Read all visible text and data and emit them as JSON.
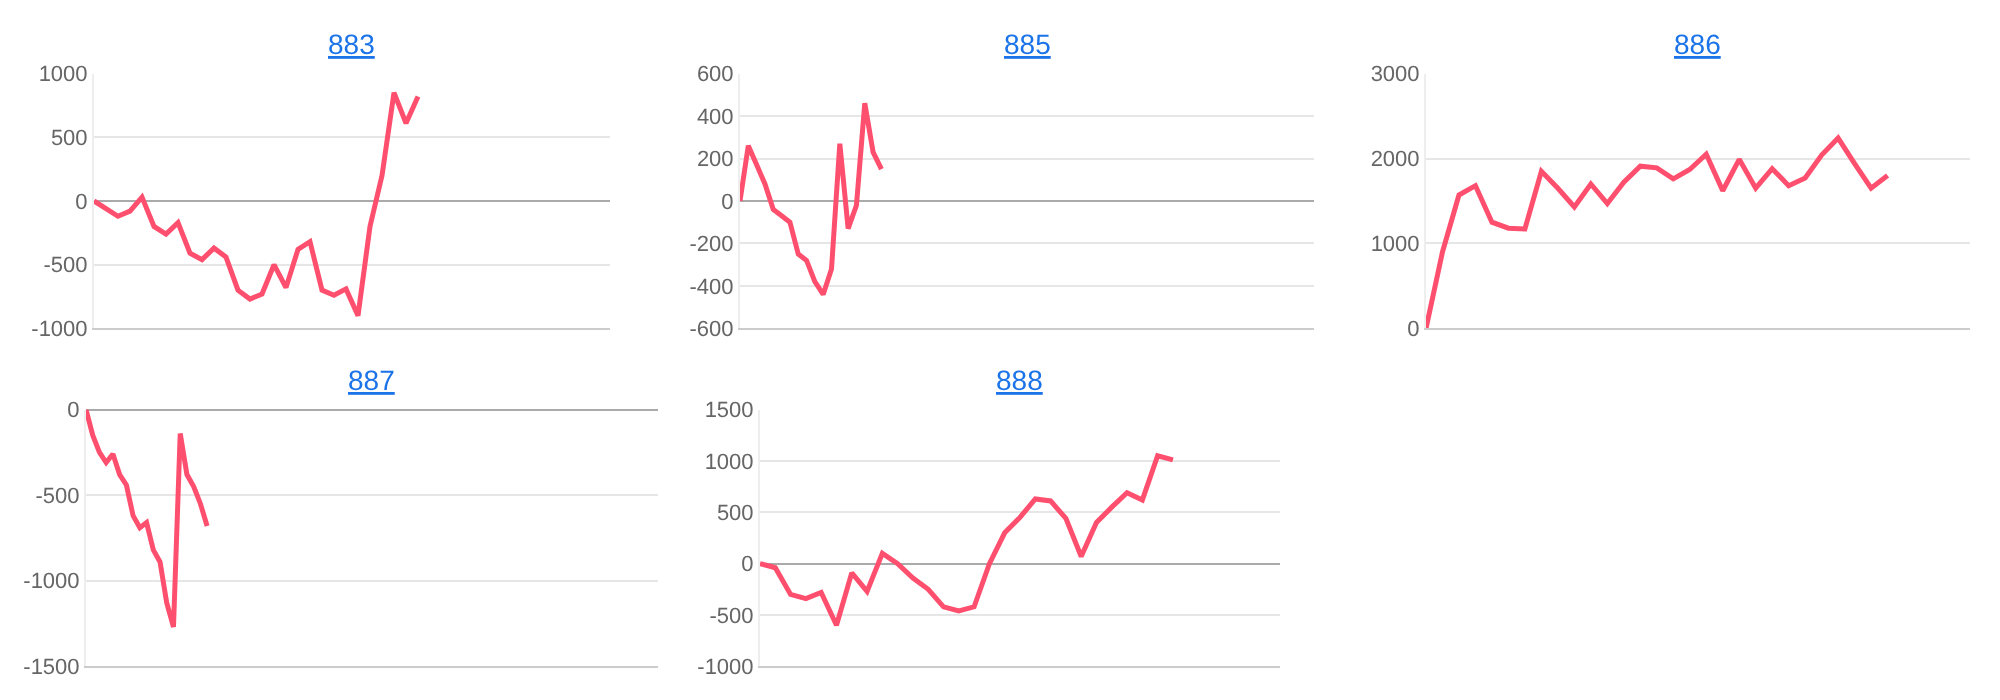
{
  "chart_data": [
    {
      "type": "line",
      "title": "883",
      "color": "#ff4f6e",
      "grid": "y",
      "tick_labels": "y",
      "ylim": [
        -1000,
        1000
      ],
      "yticks": [
        -1000,
        -500,
        0,
        500,
        1000
      ],
      "categories": [
        null,
        null,
        null,
        null,
        null,
        null,
        null,
        null,
        null,
        null,
        null,
        null,
        null,
        null,
        null,
        null,
        null,
        null,
        null,
        null,
        null,
        null,
        null,
        null,
        null,
        null,
        null,
        null,
        null,
        null,
        null,
        null,
        null,
        null,
        null,
        null,
        null,
        null,
        null,
        null,
        null,
        null,
        null,
        null
      ],
      "values": [
        0,
        -60,
        -120,
        -80,
        30,
        -200,
        -260,
        -170,
        -410,
        -460,
        -370,
        -440,
        -700,
        -770,
        -730,
        -500,
        -680,
        -380,
        -320,
        -700,
        -740,
        -690,
        -900,
        -200,
        200,
        850,
        610,
        820,
        null,
        null,
        null,
        null,
        null,
        null,
        null,
        null,
        null,
        null,
        null,
        null,
        null,
        null,
        null,
        null
      ]
    },
    {
      "type": "line",
      "title": "885",
      "color": "#ff4f6e",
      "grid": "y",
      "tick_labels": "y",
      "ylim": [
        -600,
        600
      ],
      "yticks": [
        -600,
        -400,
        -200,
        0,
        200,
        400,
        600
      ],
      "categories": [
        null,
        null,
        null,
        null,
        null,
        null,
        null,
        null,
        null,
        null,
        null,
        null,
        null,
        null,
        null,
        null,
        null,
        null,
        null,
        null,
        null,
        null,
        null,
        null,
        null,
        null,
        null,
        null,
        null,
        null,
        null,
        null,
        null,
        null,
        null,
        null,
        null,
        null,
        null,
        null,
        null,
        null,
        null,
        null,
        null,
        null,
        null,
        null,
        null,
        null,
        null,
        null,
        null,
        null,
        null,
        null,
        null,
        null,
        null,
        null,
        null,
        null,
        null,
        null,
        null,
        null,
        null,
        null,
        null,
        null
      ],
      "values": [
        0,
        260,
        170,
        80,
        -40,
        -70,
        -100,
        -250,
        -280,
        -380,
        -440,
        -320,
        270,
        -130,
        -20,
        460,
        230,
        150,
        null,
        null,
        null,
        null,
        null,
        null,
        null,
        null,
        null,
        null,
        null,
        null,
        null,
        null,
        null,
        null,
        null,
        null,
        null,
        null,
        null,
        null,
        null,
        null,
        null,
        null,
        null,
        null,
        null,
        null,
        null,
        null,
        null,
        null,
        null,
        null,
        null,
        null,
        null,
        null,
        null,
        null,
        null,
        null,
        null,
        null,
        null,
        null,
        null,
        null,
        null,
        null
      ]
    },
    {
      "type": "line",
      "title": "886",
      "color": "#ff4f6e",
      "grid": "y",
      "tick_labels": "y",
      "ylim": [
        0,
        3000
      ],
      "yticks": [
        0,
        1000,
        2000,
        3000
      ],
      "categories": [
        null,
        null,
        null,
        null,
        null,
        null,
        null,
        null,
        null,
        null,
        null,
        null,
        null,
        null,
        null,
        null,
        null,
        null,
        null,
        null,
        null,
        null,
        null,
        null,
        null,
        null,
        null,
        null,
        null,
        null,
        null,
        null,
        null,
        null
      ],
      "values": [
        0,
        900,
        1570,
        1680,
        1250,
        1180,
        1170,
        1850,
        1650,
        1430,
        1700,
        1470,
        1720,
        1910,
        1890,
        1760,
        1870,
        2050,
        1620,
        1990,
        1650,
        1880,
        1680,
        1770,
        2040,
        2240,
        1940,
        1650,
        1800,
        null,
        null,
        null,
        null,
        null
      ]
    },
    {
      "type": "line",
      "title": "887",
      "color": "#ff4f6e",
      "grid": "y",
      "tick_labels": "y",
      "ylim": [
        -1500,
        0
      ],
      "yticks": [
        -1500,
        -1000,
        -500,
        0
      ],
      "categories": [
        null,
        null,
        null,
        null,
        null,
        null,
        null,
        null,
        null,
        null,
        null,
        null,
        null,
        null,
        null,
        null,
        null,
        null,
        null,
        null,
        null,
        null,
        null,
        null,
        null,
        null,
        null,
        null,
        null,
        null,
        null,
        null,
        null,
        null,
        null,
        null,
        null,
        null,
        null,
        null,
        null,
        null,
        null,
        null,
        null,
        null,
        null,
        null,
        null,
        null,
        null,
        null,
        null,
        null,
        null,
        null,
        null,
        null,
        null,
        null,
        null,
        null,
        null,
        null,
        null,
        null,
        null,
        null,
        null,
        null,
        null,
        null,
        null,
        null,
        null,
        null,
        null,
        null,
        null,
        null,
        null,
        null,
        null,
        null,
        null,
        null
      ],
      "values": [
        0,
        -150,
        -250,
        -310,
        -260,
        -380,
        -440,
        -620,
        -690,
        -660,
        -820,
        -890,
        -1130,
        -1270,
        -140,
        -380,
        -450,
        -550,
        -680,
        null,
        null,
        null,
        null,
        null,
        null,
        null,
        null,
        null,
        null,
        null,
        null,
        null,
        null,
        null,
        null,
        null,
        null,
        null,
        null,
        null,
        null,
        null,
        null,
        null,
        null,
        null,
        null,
        null,
        null,
        null,
        null,
        null,
        null,
        null,
        null,
        null,
        null,
        null,
        null,
        null,
        null,
        null,
        null,
        null,
        null,
        null,
        null,
        null,
        null,
        null,
        null,
        null,
        null,
        null,
        null,
        null,
        null,
        null,
        null,
        null,
        null,
        null,
        null,
        null,
        null,
        null
      ]
    },
    {
      "type": "line",
      "title": "888",
      "color": "#ff4f6e",
      "grid": "y",
      "tick_labels": "y",
      "ylim": [
        -1000,
        1500
      ],
      "yticks": [
        -1000,
        -500,
        0,
        500,
        1000,
        1500
      ],
      "categories": [
        null,
        null,
        null,
        null,
        null,
        null,
        null,
        null,
        null,
        null,
        null,
        null,
        null,
        null,
        null,
        null,
        null,
        null,
        null,
        null,
        null,
        null,
        null,
        null,
        null,
        null,
        null,
        null,
        null,
        null,
        null,
        null,
        null,
        null,
        null
      ],
      "values": [
        0,
        -40,
        -300,
        -340,
        -280,
        -600,
        -90,
        -270,
        100,
        0,
        -140,
        -250,
        -420,
        -460,
        -420,
        0,
        300,
        450,
        630,
        610,
        440,
        70,
        400,
        550,
        690,
        620,
        1050,
        1010,
        null,
        null,
        null,
        null,
        null,
        null,
        null
      ]
    }
  ]
}
